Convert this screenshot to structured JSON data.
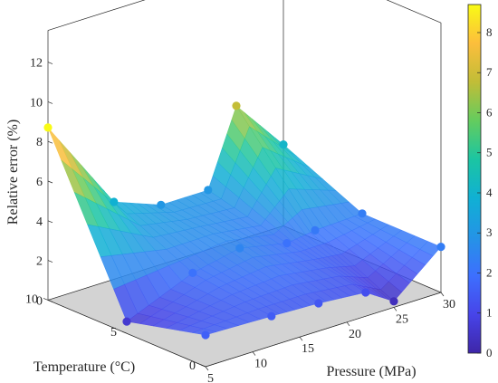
{
  "chart_data": {
    "type": "surface",
    "xlabel": "Pressure (MPa)",
    "ylabel": "Temperature (°C)",
    "zlabel": "Relative error (%)",
    "xlim": [
      5,
      30
    ],
    "ylim": [
      0,
      10
    ],
    "zlim": [
      0,
      13
    ],
    "x_ticks": [
      "5",
      "10",
      "15",
      "20",
      "25",
      "30"
    ],
    "y_ticks": [
      "0",
      "5",
      "10"
    ],
    "z_ticks": [
      "0",
      "2",
      "4",
      "6",
      "8",
      "10",
      "12"
    ],
    "colorbar": {
      "min": 0,
      "max": 8.7,
      "ticks": [
        "0",
        "1",
        "2",
        "3",
        "4",
        "5",
        "6",
        "7",
        "8"
      ]
    },
    "colormap": [
      "#3e26a8",
      "#4744e9",
      "#3d6ffe",
      "#2494e6",
      "#10b0d4",
      "#1bc5a2",
      "#64cc5e",
      "#c1bd37",
      "#fcbe3c",
      "#f9fb15"
    ],
    "grid": false,
    "background_plane": "light gray floor",
    "points": [
      {
        "x": 5,
        "y": 10,
        "z": 8.7
      },
      {
        "x": 12,
        "y": 10,
        "z": 3.9
      },
      {
        "x": 17,
        "y": 10,
        "z": 3.0
      },
      {
        "x": 22,
        "y": 10,
        "z": 3.0
      },
      {
        "x": 25,
        "y": 10,
        "z": 6.8
      },
      {
        "x": 30,
        "y": 10,
        "z": 4.1
      },
      {
        "x": 5,
        "y": 5,
        "z": 0.6
      },
      {
        "x": 12,
        "y": 5,
        "z": 2.0
      },
      {
        "x": 17,
        "y": 5,
        "z": 2.5
      },
      {
        "x": 22,
        "y": 5,
        "z": 2.0
      },
      {
        "x": 25,
        "y": 5,
        "z": 2.2
      },
      {
        "x": 30,
        "y": 5,
        "z": 2.3
      },
      {
        "x": 5,
        "y": 0,
        "z": 1.6
      },
      {
        "x": 12,
        "y": 0,
        "z": 1.5
      },
      {
        "x": 17,
        "y": 0,
        "z": 1.4
      },
      {
        "x": 22,
        "y": 0,
        "z": 1.2
      },
      {
        "x": 25,
        "y": 0,
        "z": 0.3
      },
      {
        "x": 30,
        "y": 0,
        "z": 2.3
      }
    ],
    "grid_x": [
      5,
      12,
      17,
      22,
      25,
      30
    ],
    "grid_y": [
      10,
      5,
      0
    ]
  }
}
